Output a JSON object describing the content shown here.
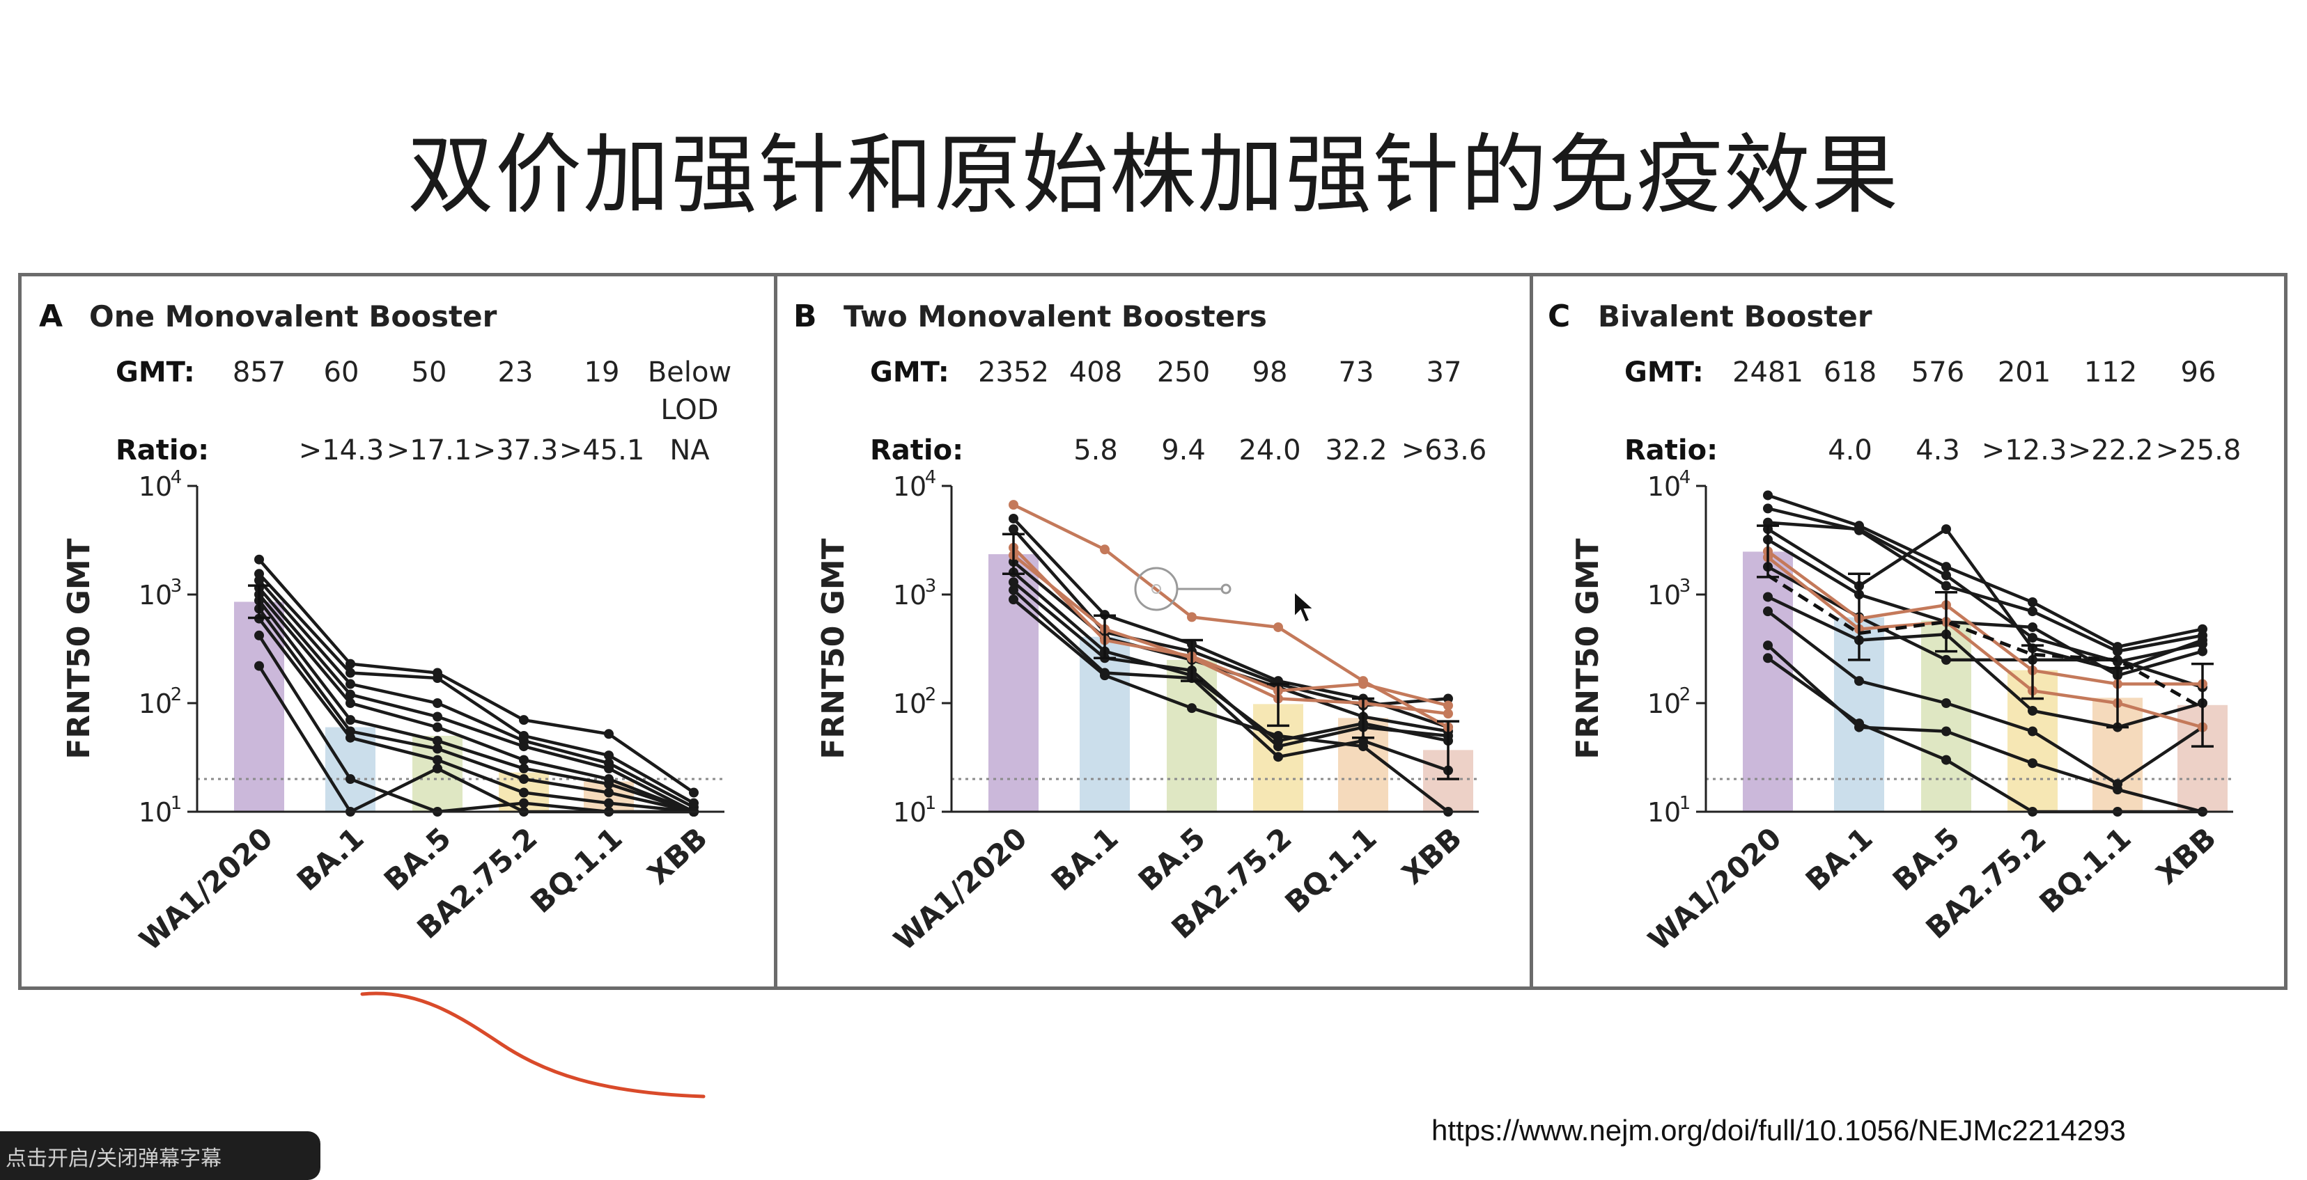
{
  "slide": {
    "title": "双价加强针和原始株加强针的免疫效果",
    "source_url": "https://www.nejm.org/doi/full/10.1056/NEJMc2214293",
    "caption_text": "点击开启/关闭弹幕字幕"
  },
  "colors": {
    "bars": [
      "#c8b4d8",
      "#c8dcea",
      "#dde6c0",
      "#f6e6b0",
      "#f4d8b8",
      "#eccfc4"
    ],
    "subject_line": "#1a1a1a",
    "highlight_line": "#c4795a",
    "lod_line": "#8a8a8a",
    "annotation": "#d94a2a"
  },
  "chart_data": [
    {
      "type": "bar",
      "panel_letter": "A",
      "title": "One Monovalent Booster",
      "categories": [
        "WA1/2020",
        "BA.1",
        "BA.5",
        "BA2.75.2",
        "BQ.1.1",
        "XBB"
      ],
      "gmt_label": "GMT:",
      "gmt_values": [
        "857",
        "60",
        "50",
        "23",
        "19",
        "Below LOD"
      ],
      "ratio_label": "Ratio:",
      "ratio_values": [
        "",
        ">14.3",
        ">17.1",
        ">37.3",
        ">45.1",
        "NA"
      ],
      "values": [
        857,
        60,
        50,
        23,
        19,
        10
      ],
      "error_bars": [
        [
          1210,
          610
        ],
        null,
        null,
        null,
        null,
        null
      ],
      "ylabel": "FRNT50 GMT",
      "yscale": "log",
      "ylim": [
        10,
        10000
      ],
      "yticks": [
        "10^1",
        "10^2",
        "10^3",
        "10^4"
      ],
      "lod": 20,
      "dashed_mean": null,
      "subjects": [
        {
          "values": [
            2100,
            230,
            190,
            70,
            52,
            15
          ],
          "highlight": false
        },
        {
          "values": [
            1550,
            190,
            170,
            50,
            33,
            12
          ],
          "highlight": false
        },
        {
          "values": [
            1350,
            150,
            100,
            45,
            28,
            11
          ],
          "highlight": false
        },
        {
          "values": [
            1150,
            120,
            75,
            40,
            25,
            10
          ],
          "highlight": false
        },
        {
          "values": [
            1000,
            100,
            60,
            30,
            20,
            10
          ],
          "highlight": false
        },
        {
          "values": [
            880,
            70,
            45,
            25,
            18,
            10
          ],
          "highlight": false
        },
        {
          "values": [
            740,
            55,
            38,
            20,
            15,
            10
          ],
          "highlight": false
        },
        {
          "values": [
            600,
            48,
            30,
            15,
            12,
            10
          ],
          "highlight": false
        },
        {
          "values": [
            420,
            20,
            10,
            12,
            10,
            10
          ],
          "highlight": false
        },
        {
          "values": [
            220,
            10,
            25,
            10,
            10,
            10
          ],
          "highlight": false
        }
      ]
    },
    {
      "type": "bar",
      "panel_letter": "B",
      "title": "Two Monovalent Boosters",
      "categories": [
        "WA1/2020",
        "BA.1",
        "BA.5",
        "BA2.75.2",
        "BQ.1.1",
        "XBB"
      ],
      "gmt_label": "GMT:",
      "gmt_values": [
        "2352",
        "408",
        "250",
        "98",
        "73",
        "37"
      ],
      "ratio_label": "Ratio:",
      "ratio_values": [
        "",
        "5.8",
        "9.4",
        "24.0",
        "32.2",
        ">63.6"
      ],
      "values": [
        2352,
        408,
        250,
        98,
        73,
        37
      ],
      "error_bars": [
        [
          3600,
          1550
        ],
        [
          640,
          260
        ],
        [
          380,
          160
        ],
        [
          150,
          62
        ],
        [
          110,
          48
        ],
        [
          68,
          20
        ]
      ],
      "ylabel": "FRNT50 GMT",
      "yscale": "log",
      "ylim": [
        10,
        10000
      ],
      "yticks": [
        "10^1",
        "10^2",
        "10^3",
        "10^4"
      ],
      "lod": 20,
      "dashed_mean": null,
      "subjects": [
        {
          "values": [
            6700,
            2600,
            620,
            500,
            160,
            60
          ],
          "highlight": true
        },
        {
          "values": [
            2700,
            380,
            270,
            130,
            150,
            95
          ],
          "highlight": true
        },
        {
          "values": [
            2300,
            480,
            260,
            110,
            100,
            80
          ],
          "highlight": true
        },
        {
          "values": [
            5000,
            650,
            350,
            160,
            110,
            60
          ],
          "highlight": false
        },
        {
          "values": [
            4000,
            450,
            300,
            150,
            95,
            110
          ],
          "highlight": false
        },
        {
          "values": [
            2000,
            400,
            250,
            140,
            75,
            55
          ],
          "highlight": false
        },
        {
          "values": [
            1600,
            300,
            180,
            45,
            65,
            45
          ],
          "highlight": false
        },
        {
          "values": [
            1300,
            260,
            200,
            40,
            60,
            50
          ],
          "highlight": false
        },
        {
          "values": [
            1100,
            190,
            170,
            32,
            45,
            24
          ],
          "highlight": false
        },
        {
          "values": [
            900,
            180,
            90,
            50,
            40,
            10
          ],
          "highlight": false
        }
      ]
    },
    {
      "type": "bar",
      "panel_letter": "C",
      "title": "Bivalent Booster",
      "categories": [
        "WA1/2020",
        "BA.1",
        "BA.5",
        "BA2.75.2",
        "BQ.1.1",
        "XBB"
      ],
      "gmt_label": "GMT:",
      "gmt_values": [
        "2481",
        "618",
        "576",
        "201",
        "112",
        "96"
      ],
      "ratio_label": "Ratio:",
      "ratio_values": [
        "",
        "4.0",
        "4.3",
        ">12.3",
        ">22.2",
        ">25.8"
      ],
      "values": [
        2481,
        618,
        576,
        201,
        112,
        96
      ],
      "error_bars": [
        [
          4300,
          1450
        ],
        [
          1550,
          250
        ],
        [
          1050,
          300
        ],
        [
          340,
          110
        ],
        [
          210,
          60
        ],
        [
          230,
          40
        ]
      ],
      "ylabel": "FRNT50 GMT",
      "yscale": "log",
      "ylim": [
        10,
        10000
      ],
      "yticks": [
        "10^1",
        "10^2",
        "10^3",
        "10^4"
      ],
      "lod": 20,
      "dashed_mean": [
        1500,
        440,
        560,
        280,
        250,
        90
      ],
      "subjects": [
        {
          "values": [
            2500,
            600,
            800,
            200,
            150,
            150
          ],
          "highlight": true
        },
        {
          "values": [
            2200,
            480,
            560,
            130,
            100,
            60
          ],
          "highlight": true
        },
        {
          "values": [
            8200,
            4300,
            1800,
            850,
            330,
            480
          ],
          "highlight": false
        },
        {
          "values": [
            6200,
            3900,
            1200,
            700,
            300,
            420
          ],
          "highlight": false
        },
        {
          "values": [
            4600,
            4000,
            1500,
            400,
            240,
            350
          ],
          "highlight": false
        },
        {
          "values": [
            4000,
            1200,
            4000,
            320,
            200,
            380
          ],
          "highlight": false
        },
        {
          "values": [
            3200,
            1000,
            560,
            500,
            180,
            300
          ],
          "highlight": false
        },
        {
          "values": [
            1800,
            620,
            250,
            250,
            250,
            140
          ],
          "highlight": false
        },
        {
          "values": [
            950,
            380,
            430,
            85,
            60,
            100
          ],
          "highlight": false
        },
        {
          "values": [
            700,
            160,
            100,
            55,
            18,
            60
          ],
          "highlight": false
        },
        {
          "values": [
            340,
            60,
            55,
            28,
            16,
            10
          ],
          "highlight": false
        },
        {
          "values": [
            260,
            65,
            30,
            10,
            10,
            10
          ],
          "highlight": false
        }
      ]
    }
  ]
}
